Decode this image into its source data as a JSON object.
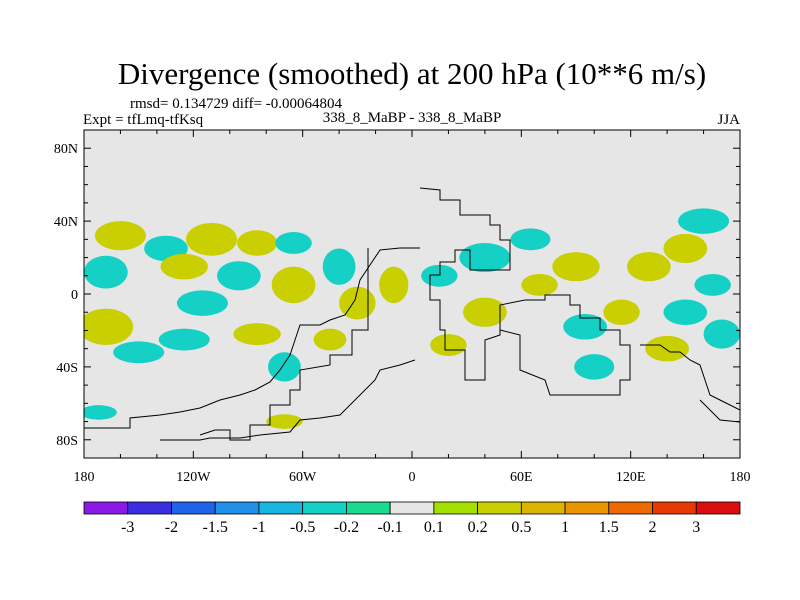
{
  "chart_data": {
    "type": "heatmap",
    "title": "Divergence (smoothed) at 200 hPa (10**6 m/s)",
    "stats_line": "rmsd= 0.134729 diff= -0.00064804",
    "expt_label": "Expt = tfLmq-tfKsq",
    "case_label": "338_8_MaBP - 338_8_MaBP",
    "season": "JJA",
    "x_range": [
      -180,
      180
    ],
    "y_range": [
      -90,
      90
    ],
    "x_ticks": [
      {
        "value": -180,
        "label": "180"
      },
      {
        "value": -120,
        "label": "120W"
      },
      {
        "value": -60,
        "label": "60W"
      },
      {
        "value": 0,
        "label": "0"
      },
      {
        "value": 60,
        "label": "60E"
      },
      {
        "value": 120,
        "label": "120E"
      },
      {
        "value": 180,
        "label": "180"
      }
    ],
    "y_ticks": [
      {
        "value": 80,
        "label": "80N"
      },
      {
        "value": 40,
        "label": "40N"
      },
      {
        "value": 0,
        "label": "0"
      },
      {
        "value": -40,
        "label": "40S"
      },
      {
        "value": -80,
        "label": "80S"
      }
    ],
    "colorbar": {
      "colors": [
        "#8b1ae6",
        "#3a2ee0",
        "#1f64e8",
        "#2090e6",
        "#19b7e0",
        "#15d0c4",
        "#1bd98e",
        "#e6e6e6",
        "#a3e000",
        "#c9cf00",
        "#dcb400",
        "#e89500",
        "#ee6a00",
        "#e83a00",
        "#dc0f0f"
      ],
      "labels": [
        "-3",
        "-2",
        "-1.5",
        "-1",
        "-0.5",
        "-0.2",
        "-0.1",
        "0.1",
        "0.2",
        "0.5",
        "1",
        "1.5",
        "2",
        "3"
      ]
    },
    "blobs": [
      {
        "lon": -160,
        "lat": 32,
        "rx": 14,
        "ry": 8,
        "color": "#c9cf00"
      },
      {
        "lon": -168,
        "lat": 12,
        "rx": 12,
        "ry": 9,
        "color": "#15d0c4"
      },
      {
        "lon": -168,
        "lat": -18,
        "rx": 15,
        "ry": 10,
        "color": "#c9cf00"
      },
      {
        "lon": -150,
        "lat": -32,
        "rx": 14,
        "ry": 6,
        "color": "#15d0c4"
      },
      {
        "lon": -135,
        "lat": 25,
        "rx": 12,
        "ry": 7,
        "color": "#15d0c4"
      },
      {
        "lon": -125,
        "lat": 15,
        "rx": 13,
        "ry": 7,
        "color": "#c9cf00"
      },
      {
        "lon": -110,
        "lat": 30,
        "rx": 14,
        "ry": 9,
        "color": "#c9cf00"
      },
      {
        "lon": -115,
        "lat": -5,
        "rx": 14,
        "ry": 7,
        "color": "#15d0c4"
      },
      {
        "lon": -125,
        "lat": -25,
        "rx": 14,
        "ry": 6,
        "color": "#15d0c4"
      },
      {
        "lon": -95,
        "lat": 10,
        "rx": 12,
        "ry": 8,
        "color": "#15d0c4"
      },
      {
        "lon": -85,
        "lat": 28,
        "rx": 11,
        "ry": 7,
        "color": "#c9cf00"
      },
      {
        "lon": -65,
        "lat": 5,
        "rx": 12,
        "ry": 10,
        "color": "#c9cf00"
      },
      {
        "lon": -65,
        "lat": 28,
        "rx": 10,
        "ry": 6,
        "color": "#15d0c4"
      },
      {
        "lon": -85,
        "lat": -22,
        "rx": 13,
        "ry": 6,
        "color": "#c9cf00"
      },
      {
        "lon": -70,
        "lat": -40,
        "rx": 9,
        "ry": 8,
        "color": "#15d0c4"
      },
      {
        "lon": -40,
        "lat": 15,
        "rx": 9,
        "ry": 10,
        "color": "#15d0c4"
      },
      {
        "lon": -30,
        "lat": -5,
        "rx": 10,
        "ry": 9,
        "color": "#c9cf00"
      },
      {
        "lon": -45,
        "lat": -25,
        "rx": 9,
        "ry": 6,
        "color": "#c9cf00"
      },
      {
        "lon": -10,
        "lat": 5,
        "rx": 8,
        "ry": 10,
        "color": "#c9cf00"
      },
      {
        "lon": 15,
        "lat": 10,
        "rx": 10,
        "ry": 6,
        "color": "#15d0c4"
      },
      {
        "lon": 40,
        "lat": 20,
        "rx": 14,
        "ry": 8,
        "color": "#15d0c4"
      },
      {
        "lon": 40,
        "lat": -10,
        "rx": 12,
        "ry": 8,
        "color": "#c9cf00"
      },
      {
        "lon": 20,
        "lat": -28,
        "rx": 10,
        "ry": 6,
        "color": "#c9cf00"
      },
      {
        "lon": 70,
        "lat": 5,
        "rx": 10,
        "ry": 6,
        "color": "#c9cf00"
      },
      {
        "lon": 65,
        "lat": 30,
        "rx": 11,
        "ry": 6,
        "color": "#15d0c4"
      },
      {
        "lon": 90,
        "lat": 15,
        "rx": 13,
        "ry": 8,
        "color": "#c9cf00"
      },
      {
        "lon": 95,
        "lat": -18,
        "rx": 12,
        "ry": 7,
        "color": "#15d0c4"
      },
      {
        "lon": 100,
        "lat": -40,
        "rx": 11,
        "ry": 7,
        "color": "#15d0c4"
      },
      {
        "lon": 115,
        "lat": -10,
        "rx": 10,
        "ry": 7,
        "color": "#c9cf00"
      },
      {
        "lon": 130,
        "lat": 15,
        "rx": 12,
        "ry": 8,
        "color": "#c9cf00"
      },
      {
        "lon": 150,
        "lat": 25,
        "rx": 12,
        "ry": 8,
        "color": "#c9cf00"
      },
      {
        "lon": 160,
        "lat": 40,
        "rx": 14,
        "ry": 7,
        "color": "#15d0c4"
      },
      {
        "lon": 150,
        "lat": -10,
        "rx": 12,
        "ry": 7,
        "color": "#15d0c4"
      },
      {
        "lon": 140,
        "lat": -30,
        "rx": 12,
        "ry": 7,
        "color": "#c9cf00"
      },
      {
        "lon": 170,
        "lat": -22,
        "rx": 10,
        "ry": 8,
        "color": "#15d0c4"
      },
      {
        "lon": 165,
        "lat": 5,
        "rx": 10,
        "ry": 6,
        "color": "#15d0c4"
      },
      {
        "lon": -70,
        "lat": -70,
        "rx": 10,
        "ry": 4,
        "color": "#c9cf00"
      },
      {
        "lon": -172,
        "lat": -65,
        "rx": 10,
        "ry": 4,
        "color": "#15d0c4"
      }
    ]
  }
}
